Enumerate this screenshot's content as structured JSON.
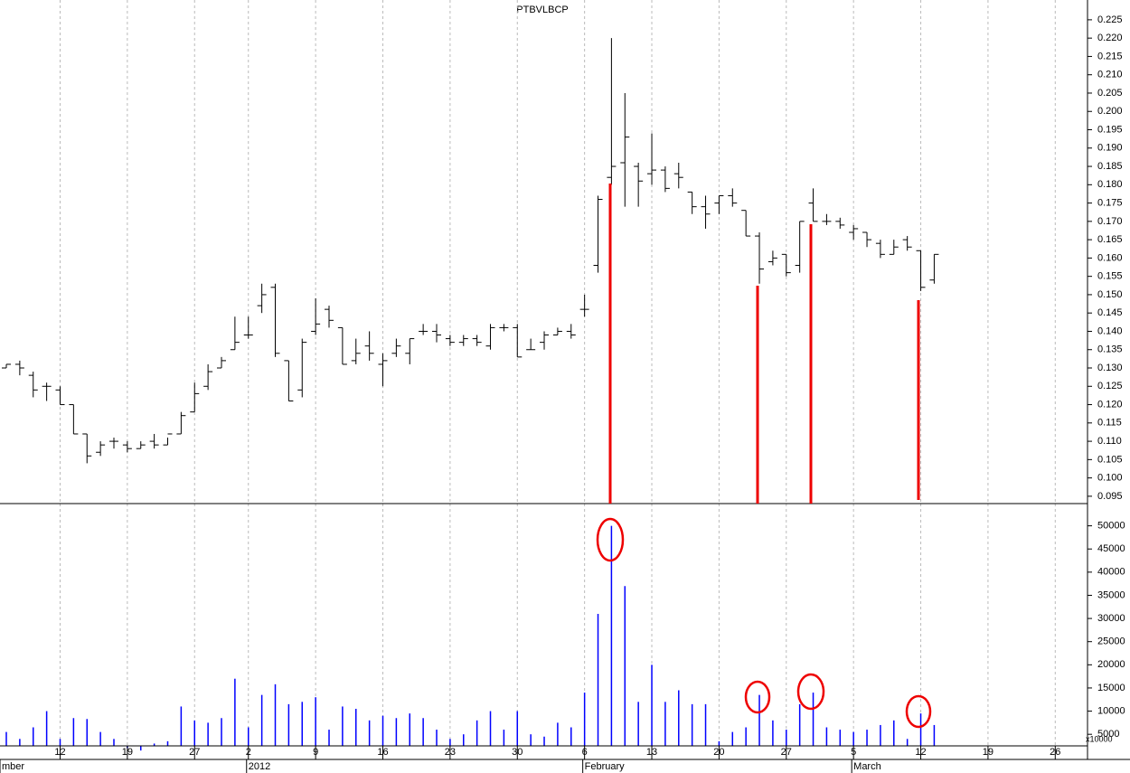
{
  "chart_data": [
    {
      "type": "ohlc",
      "title": "PTBVLBCP",
      "series": {
        "color": "#000000",
        "open": [
          0.13,
          0.131,
          0.128,
          0.125,
          0.124,
          0.12,
          0.112,
          0.107,
          0.11,
          0.109,
          0.108,
          0.11,
          0.109,
          0.112,
          0.118,
          0.125,
          0.13,
          0.135,
          0.139,
          0.147,
          0.152,
          0.132,
          0.124,
          0.14,
          0.146,
          0.141,
          0.132,
          0.136,
          0.131,
          0.134,
          0.134,
          0.14,
          0.14,
          0.138,
          0.137,
          0.138,
          0.136,
          0.141,
          0.141,
          0.135,
          0.137,
          0.139,
          0.14,
          0.146,
          0.158,
          0.182,
          0.186,
          0.185,
          0.183,
          0.184,
          0.183,
          0.178,
          0.174,
          0.175,
          0.177,
          0.173,
          0.166,
          0.159,
          0.161,
          0.158,
          0.175,
          0.17,
          0.17,
          0.167,
          0.167,
          0.164,
          0.161,
          0.165,
          0.162,
          0.154
        ],
        "high": [
          0.131,
          0.132,
          0.129,
          0.126,
          0.125,
          0.12,
          0.112,
          0.11,
          0.111,
          0.11,
          0.11,
          0.112,
          0.111,
          0.118,
          0.126,
          0.131,
          0.133,
          0.144,
          0.144,
          0.153,
          0.153,
          0.132,
          0.138,
          0.149,
          0.147,
          0.141,
          0.138,
          0.14,
          0.134,
          0.138,
          0.138,
          0.142,
          0.142,
          0.139,
          0.139,
          0.139,
          0.142,
          0.142,
          0.142,
          0.138,
          0.14,
          0.141,
          0.142,
          0.15,
          0.177,
          0.22,
          0.205,
          0.186,
          0.194,
          0.185,
          0.186,
          0.178,
          0.177,
          0.177,
          0.179,
          0.173,
          0.167,
          0.162,
          0.161,
          0.17,
          0.179,
          0.172,
          0.171,
          0.169,
          0.167,
          0.165,
          0.165,
          0.166,
          0.162,
          0.161
        ],
        "low": [
          0.13,
          0.128,
          0.122,
          0.121,
          0.12,
          0.112,
          0.104,
          0.106,
          0.108,
          0.107,
          0.108,
          0.108,
          0.109,
          0.112,
          0.118,
          0.124,
          0.13,
          0.135,
          0.138,
          0.145,
          0.133,
          0.121,
          0.122,
          0.139,
          0.141,
          0.131,
          0.131,
          0.132,
          0.125,
          0.133,
          0.131,
          0.139,
          0.137,
          0.136,
          0.136,
          0.136,
          0.135,
          0.14,
          0.133,
          0.135,
          0.135,
          0.139,
          0.138,
          0.144,
          0.156,
          0.18,
          0.174,
          0.174,
          0.18,
          0.178,
          0.179,
          0.172,
          0.168,
          0.172,
          0.174,
          0.166,
          0.153,
          0.158,
          0.155,
          0.156,
          0.17,
          0.169,
          0.168,
          0.165,
          0.163,
          0.16,
          0.161,
          0.162,
          0.151,
          0.153
        ],
        "close": [
          0.131,
          0.13,
          0.124,
          0.125,
          0.12,
          0.112,
          0.106,
          0.109,
          0.11,
          0.108,
          0.109,
          0.109,
          0.112,
          0.117,
          0.123,
          0.129,
          0.132,
          0.137,
          0.139,
          0.15,
          0.134,
          0.121,
          0.137,
          0.142,
          0.143,
          0.131,
          0.134,
          0.134,
          0.132,
          0.136,
          0.138,
          0.14,
          0.139,
          0.137,
          0.138,
          0.137,
          0.141,
          0.141,
          0.133,
          0.135,
          0.139,
          0.14,
          0.139,
          0.146,
          0.176,
          0.185,
          0.193,
          0.181,
          0.184,
          0.179,
          0.182,
          0.174,
          0.172,
          0.177,
          0.175,
          0.166,
          0.157,
          0.16,
          0.156,
          0.17,
          0.17,
          0.17,
          0.169,
          0.168,
          0.165,
          0.161,
          0.163,
          0.163,
          0.152,
          0.161
        ]
      },
      "xlim": [
        -0.47,
        80.4
      ],
      "ylim": [
        0.093,
        0.2304
      ],
      "yticks": [
        0.095,
        {
          "value": 0.1,
          "label": "0.100"
        },
        0.105,
        {
          "value": 0.11,
          "label": "0.110"
        },
        0.115,
        {
          "value": 0.12,
          "label": "0.120"
        },
        0.125,
        {
          "value": 0.13,
          "label": "0.130"
        },
        0.135,
        {
          "value": 0.14,
          "label": "0.140"
        },
        0.145,
        {
          "value": 0.15,
          "label": "0.150"
        },
        0.155,
        {
          "value": 0.16,
          "label": "0.160"
        },
        0.165,
        {
          "value": 0.17,
          "label": "0.170"
        },
        0.175,
        {
          "value": 0.18,
          "label": "0.180"
        },
        0.185,
        {
          "value": 0.19,
          "label": "0.190"
        },
        0.195,
        {
          "value": 0.2,
          "label": "0.200"
        },
        0.205,
        {
          "value": 0.21,
          "label": "0.210"
        },
        0.215,
        {
          "value": 0.22,
          "label": "0.220"
        },
        0.225
      ]
    },
    {
      "type": "bar",
      "color": "#0000ff",
      "unit_label": "x10000",
      "values": [
        5500,
        4000,
        6500,
        10000,
        4000,
        8500,
        8300,
        5500,
        4000,
        2000,
        1500,
        3000,
        3500,
        11000,
        8000,
        7500,
        8500,
        17000,
        6500,
        13500,
        15800,
        11500,
        12000,
        13000,
        6000,
        11000,
        10500,
        8000,
        9000,
        8500,
        9500,
        8500,
        6000,
        4000,
        5000,
        8000,
        10000,
        6000,
        10000,
        5000,
        4500,
        7500,
        6500,
        14000,
        31000,
        50000,
        37000,
        12000,
        20000,
        12000,
        14500,
        11500,
        11500,
        3500,
        5500,
        6500,
        13500,
        8000,
        6000,
        11500,
        14000,
        6500,
        6000,
        5500,
        6000,
        7000,
        8000,
        4000,
        9500,
        7000
      ],
      "xlim": [
        -0.47,
        80.4
      ],
      "xticks": [
        {
          "value": 4,
          "label": "12"
        },
        {
          "value": 9,
          "label": "19"
        },
        {
          "value": 14,
          "label": "27"
        },
        {
          "value": 18,
          "label": "2"
        },
        {
          "value": 23,
          "label": "9"
        },
        {
          "value": 28,
          "label": "16"
        },
        {
          "value": 33,
          "label": "23"
        },
        {
          "value": 38,
          "label": "30"
        },
        {
          "value": 43,
          "label": "6"
        },
        {
          "value": 48,
          "label": "13"
        },
        {
          "value": 53,
          "label": "20"
        },
        {
          "value": 58,
          "label": "27"
        },
        {
          "value": 63,
          "label": "5"
        },
        {
          "value": 68,
          "label": "12"
        },
        {
          "value": 73,
          "label": "19"
        },
        {
          "value": 78,
          "label": "26"
        }
      ],
      "x_month_ticks": [
        {
          "value": -0.47,
          "label": "mber"
        },
        {
          "value": 18,
          "label": "2012"
        },
        {
          "value": 43,
          "label": "February"
        },
        {
          "value": 63,
          "label": "March"
        }
      ],
      "ylim": [
        2500,
        54800
      ],
      "yticks": [
        5000,
        10000,
        15000,
        20000,
        25000,
        30000,
        35000,
        40000,
        45000,
        50000
      ]
    }
  ]
}
